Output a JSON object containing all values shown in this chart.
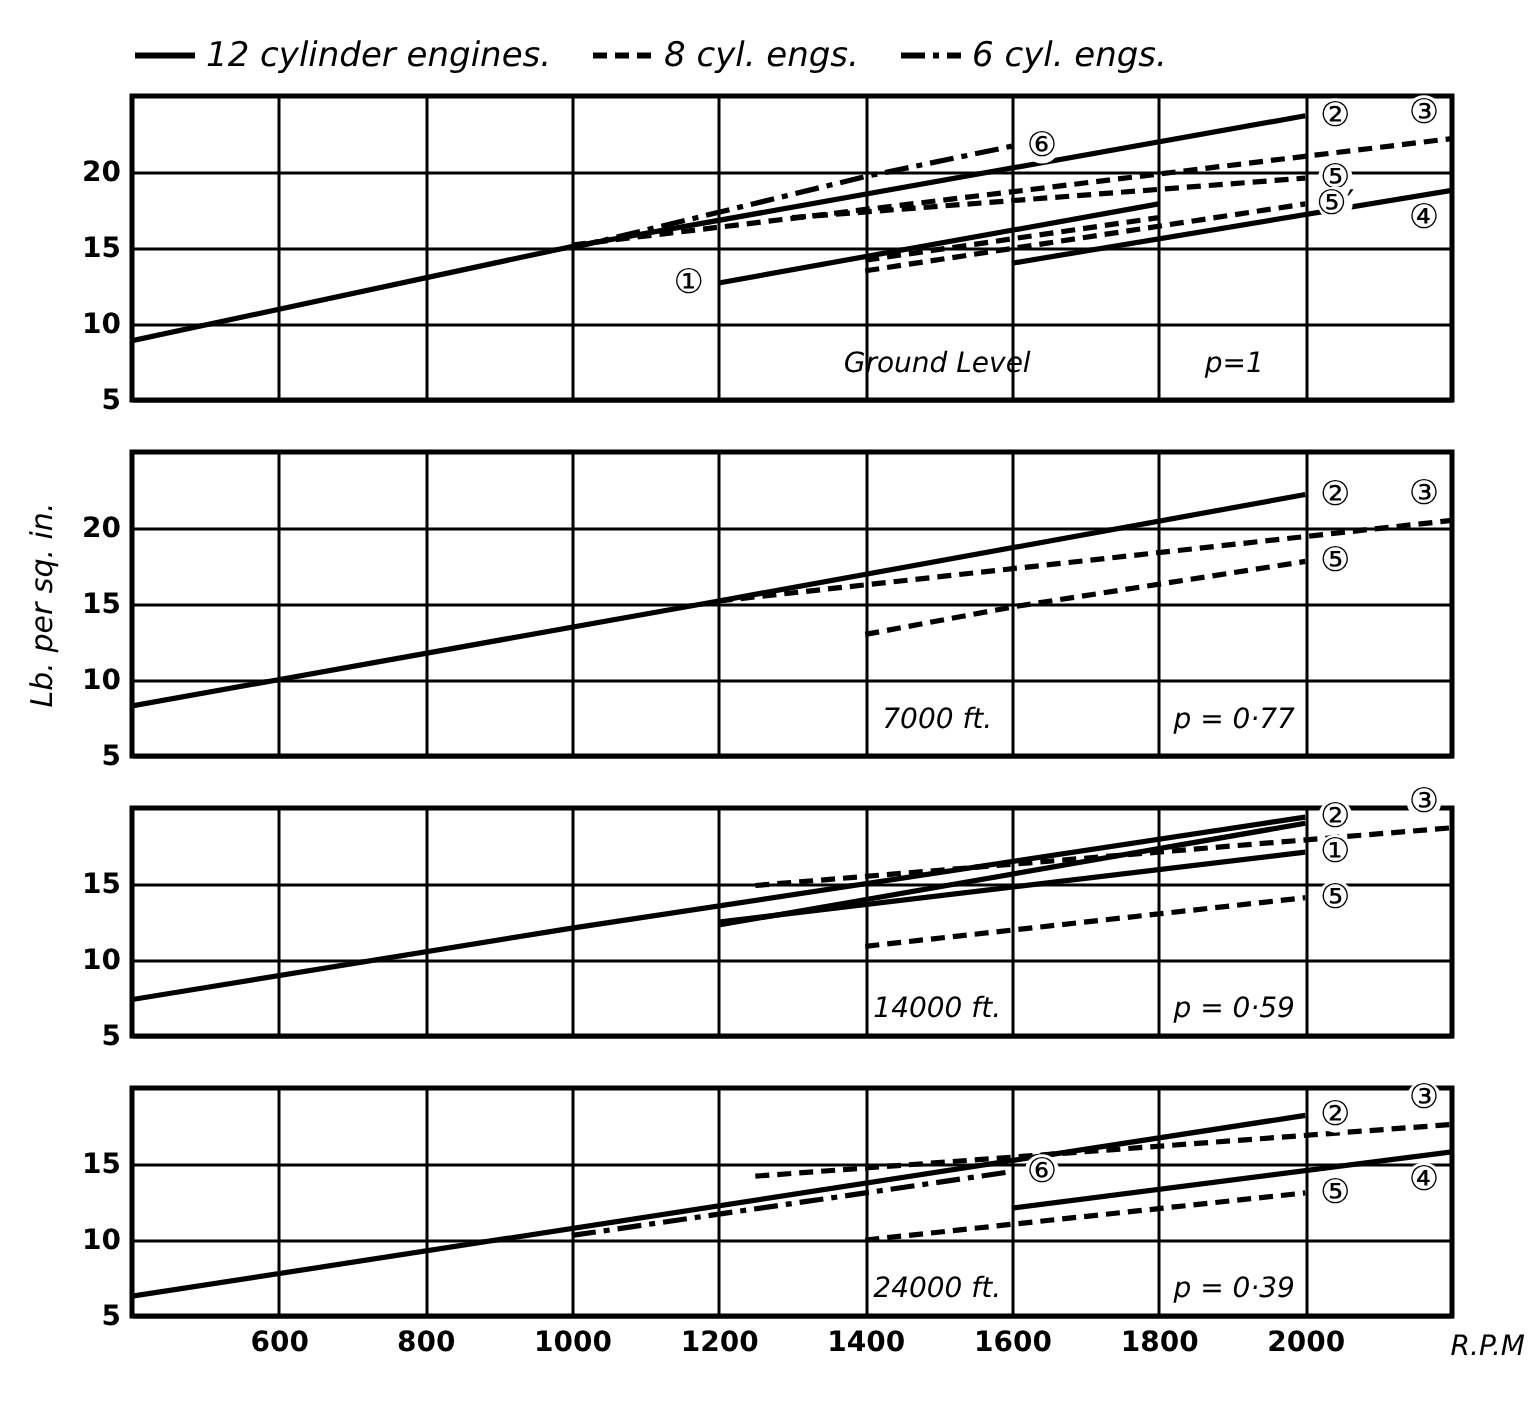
{
  "chart_data": [
    {
      "type": "line",
      "legend": "top",
      "grid": true,
      "tick_labels": "y",
      "xlim": [
        400,
        2200
      ],
      "xticks": [
        600,
        800,
        1000,
        1200,
        1400,
        1600,
        1800,
        2000
      ],
      "ylim": [
        5,
        25
      ],
      "yticks": [
        5,
        10,
        15,
        20
      ],
      "series": [
        {
          "name": "12 cylinder engines.",
          "color": "#000000",
          "line_style": "solid",
          "x": [
            400,
            1000,
            2000
          ],
          "values": [
            8.9,
            15.1,
            23.7
          ]
        },
        {
          "name": "8 cyl. engs.",
          "color": "#000000",
          "line_style": "dashed",
          "x": [
            1000,
            2200
          ],
          "values": [
            15.2,
            22.2
          ]
        },
        {
          "name": "6 cyl. engs.",
          "color": "#000000",
          "line_style": "dashdot",
          "x": [
            1000,
            1400,
            1600
          ],
          "values": [
            15.0,
            19.7,
            21.7
          ]
        },
        {
          "color": "#000000",
          "line_style": "dashed",
          "x": [
            1300,
            2000
          ],
          "values": [
            17.0,
            19.6
          ]
        },
        {
          "color": "#000000",
          "line_style": "solid",
          "x": [
            1200,
            1800
          ],
          "values": [
            12.7,
            17.9
          ]
        },
        {
          "color": "#000000",
          "line_style": "solid",
          "x": [
            1600,
            2200
          ],
          "values": [
            14.0,
            18.8
          ]
        },
        {
          "color": "#000000",
          "line_style": "dashed",
          "x": [
            1400,
            2000
          ],
          "values": [
            13.5,
            17.9
          ]
        },
        {
          "color": "#000000",
          "line_style": "dashed",
          "x": [
            1400,
            1800
          ],
          "values": [
            14.2,
            17.0
          ]
        }
      ],
      "annotations": [
        "Ground Level",
        "p=1",
        {
          "text": "①",
          "x": 1200,
          "y": 12.7
        },
        {
          "text": "②",
          "x": 2000,
          "y": 23.7
        },
        {
          "text": "③",
          "x": 2200,
          "y": 22.2
        },
        {
          "text": "⑥",
          "x": 1600,
          "y": 21.7
        },
        {
          "text": "⑤",
          "x": 2000,
          "y": 19.6
        },
        {
          "text": "⑤′",
          "x": 2000,
          "y": 17.9
        },
        {
          "text": "④",
          "x": 2200,
          "y": 18.8
        }
      ]
    },
    {
      "type": "line",
      "legend": false,
      "grid": true,
      "tick_labels": "y",
      "ylabel": "Lb. per sq. in.",
      "xlim": [
        400,
        2200
      ],
      "xticks": [
        600,
        800,
        1000,
        1200,
        1400,
        1600,
        1800,
        2000
      ],
      "ylim": [
        5,
        25
      ],
      "yticks": [
        5,
        10,
        15,
        20
      ],
      "series": [
        {
          "color": "#000000",
          "line_style": "solid",
          "x": [
            400,
            1200,
            2000
          ],
          "values": [
            8.3,
            15.2,
            22.2
          ]
        },
        {
          "color": "#000000",
          "line_style": "dashed",
          "x": [
            1200,
            2200
          ],
          "values": [
            15.2,
            20.5
          ]
        },
        {
          "color": "#000000",
          "line_style": "dashed",
          "x": [
            1400,
            1600,
            2000
          ],
          "values": [
            13.0,
            14.8,
            17.8
          ]
        }
      ],
      "annotations": [
        "7000 ft.",
        "p = 0·77",
        {
          "text": "②",
          "x": 2000,
          "y": 22.2
        },
        {
          "text": "⑤",
          "x": 2000,
          "y": 17.8
        },
        {
          "text": "③",
          "x": 2200,
          "y": 20.5
        }
      ]
    },
    {
      "type": "line",
      "legend": false,
      "grid": true,
      "tick_labels": "y",
      "xlim": [
        400,
        2200
      ],
      "xticks": [
        600,
        800,
        1000,
        1200,
        1400,
        1600,
        1800,
        2000
      ],
      "ylim": [
        5,
        20
      ],
      "yticks": [
        5,
        10,
        15
      ],
      "series": [
        {
          "color": "#000000",
          "line_style": "solid",
          "x": [
            400,
            1000,
            2000
          ],
          "values": [
            7.4,
            12.1,
            19.4
          ]
        },
        {
          "color": "#000000",
          "line_style": "solid",
          "x": [
            1200,
            2000
          ],
          "values": [
            12.3,
            19.0
          ]
        },
        {
          "color": "#000000",
          "line_style": "solid",
          "x": [
            1200,
            2000
          ],
          "values": [
            12.5,
            17.1
          ]
        },
        {
          "color": "#000000",
          "line_style": "dashed",
          "x": [
            1250,
            2200
          ],
          "values": [
            14.9,
            18.7
          ]
        },
        {
          "color": "#000000",
          "line_style": "dashed",
          "x": [
            1400,
            2000
          ],
          "values": [
            10.9,
            14.1
          ]
        }
      ],
      "annotations": [
        "14000 ft.",
        "p = 0·59",
        {
          "text": "②",
          "x": 2000,
          "y": 19.4
        },
        {
          "text": "①",
          "x": 2000,
          "y": 17.1
        },
        {
          "text": "③",
          "x": 2200,
          "y": 18.7
        },
        {
          "text": "⑤",
          "x": 2000,
          "y": 14.1
        }
      ]
    },
    {
      "type": "line",
      "legend": false,
      "grid": true,
      "xlabel": "R.P.M",
      "xlim": [
        400,
        2200
      ],
      "xticks": [
        600,
        800,
        1000,
        1200,
        1400,
        1600,
        1800,
        2000
      ],
      "ylim": [
        5,
        20
      ],
      "yticks": [
        5,
        10,
        15
      ],
      "series": [
        {
          "color": "#000000",
          "line_style": "solid",
          "x": [
            400,
            2000
          ],
          "values": [
            6.3,
            18.2
          ]
        },
        {
          "color": "#000000",
          "line_style": "dashed",
          "x": [
            1250,
            2200
          ],
          "values": [
            14.2,
            17.6
          ]
        },
        {
          "color": "#000000",
          "line_style": "dashdot",
          "x": [
            1000,
            1600
          ],
          "values": [
            10.3,
            14.5
          ]
        },
        {
          "color": "#000000",
          "line_style": "solid",
          "x": [
            1600,
            2200
          ],
          "values": [
            12.1,
            15.8
          ]
        },
        {
          "color": "#000000",
          "line_style": "dashed",
          "x": [
            1400,
            2000
          ],
          "values": [
            10.0,
            13.1
          ]
        }
      ],
      "annotations": [
        "24000 ft.",
        "p = 0·39",
        {
          "text": "②",
          "x": 2000,
          "y": 18.2
        },
        {
          "text": "③",
          "x": 2200,
          "y": 17.6
        },
        {
          "text": "⑥",
          "x": 1600,
          "y": 14.5
        },
        {
          "text": "④",
          "x": 2200,
          "y": 15.8
        },
        {
          "text": "⑤",
          "x": 2000,
          "y": 13.1
        }
      ]
    }
  ]
}
